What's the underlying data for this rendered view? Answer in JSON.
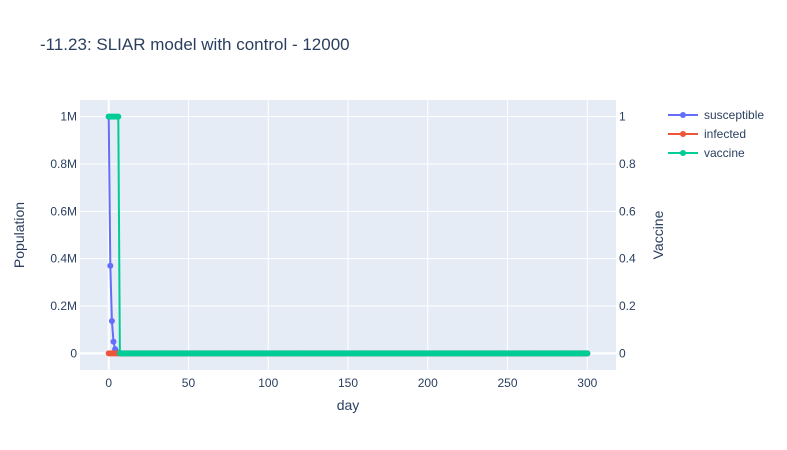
{
  "chart_data": {
    "type": "line",
    "title": "-11.23: SLIAR model with control - 12000",
    "xlabel": "day",
    "ylabel_left": "Population",
    "ylabel_right": "Vaccine",
    "xlim": [
      -18,
      318
    ],
    "ylim_left": [
      -70000,
      1070000
    ],
    "ylim_right": [
      -0.07,
      1.07
    ],
    "x_ticks": [
      0,
      50,
      100,
      150,
      200,
      250,
      300
    ],
    "x_tick_labels": [
      "0",
      "50",
      "100",
      "150",
      "200",
      "250",
      "300"
    ],
    "y_left_ticks": [
      0,
      200000,
      400000,
      600000,
      800000,
      1000000
    ],
    "y_left_tick_labels": [
      "0",
      "0.2M",
      "0.4M",
      "0.6M",
      "0.8M",
      "1M"
    ],
    "y_right_ticks": [
      0,
      0.2,
      0.4,
      0.6,
      0.8,
      1
    ],
    "y_right_tick_labels": [
      "0",
      "0.2",
      "0.4",
      "0.6",
      "0.8",
      "1"
    ],
    "grid": true,
    "legend_position": "top-right",
    "x_range": {
      "start": 0,
      "end": 300,
      "step": 1
    },
    "series": [
      {
        "name": "susceptible",
        "axis": "left",
        "color": "#636efa",
        "points": [
          [
            0,
            1000000
          ],
          [
            1,
            370000
          ],
          [
            2,
            137000
          ],
          [
            3,
            50000
          ],
          [
            4,
            18000
          ],
          [
            5,
            6000
          ],
          [
            6,
            1500
          ],
          [
            7,
            0
          ]
        ],
        "fill_value_after": 0
      },
      {
        "name": "infected",
        "axis": "left",
        "color": "#ef553b",
        "points": [
          [
            0,
            0
          ]
        ],
        "fill_value_after": 0
      },
      {
        "name": "vaccine",
        "axis": "right",
        "color": "#00cc96",
        "points": [
          [
            0,
            1
          ],
          [
            1,
            1
          ],
          [
            2,
            1
          ],
          [
            3,
            1
          ],
          [
            4,
            1
          ],
          [
            5,
            1
          ],
          [
            6,
            1
          ],
          [
            7,
            0
          ]
        ],
        "fill_value_after": 0
      }
    ]
  }
}
